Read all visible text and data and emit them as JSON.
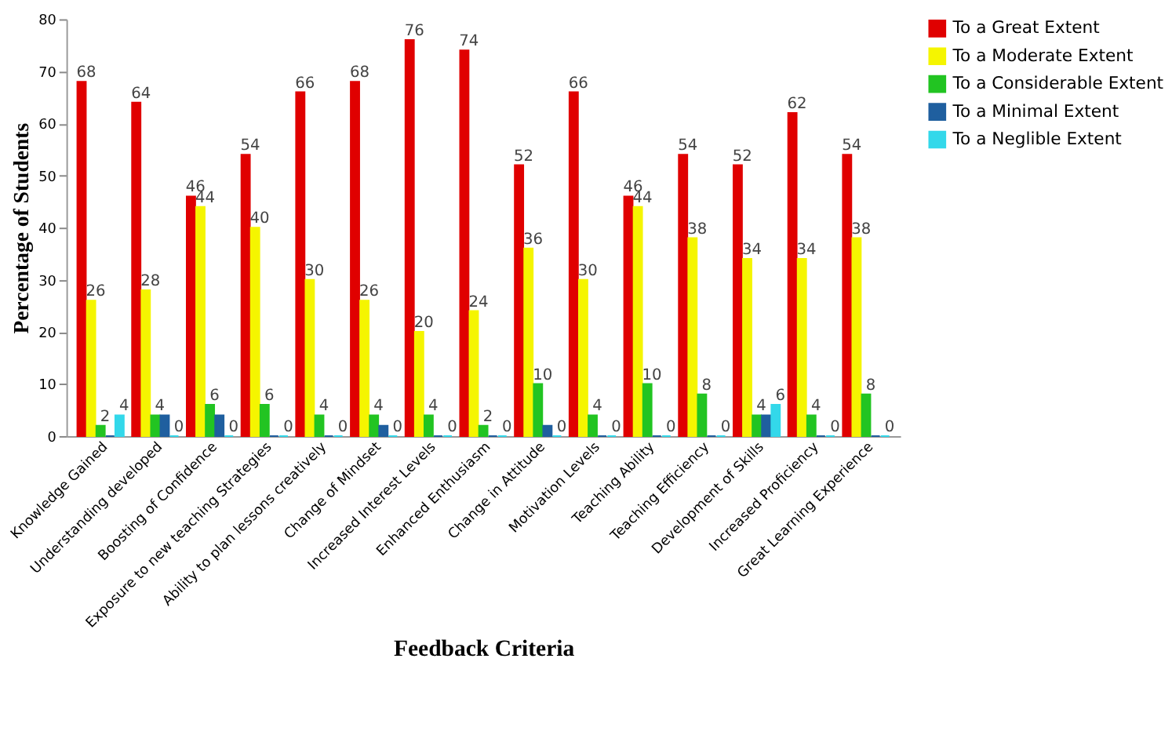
{
  "chart_data": {
    "type": "bar",
    "xlabel": "Feedback Criteria",
    "ylabel": "Percentage of Students",
    "categories": [
      "Knowledge Gained",
      "Understanding developed",
      "Boosting of Confidence",
      "Exposure to new teaching Strategies",
      "Ability to plan lessons creatively",
      "Change of Mindset",
      "Increased Interest Levels",
      "Enhanced Enthusiasm",
      "Change in Attitude",
      "Motivation Levels",
      "Teaching Ability",
      "Teaching Efficiency",
      "Development of Skills",
      "Increased Proficiency",
      "Great Learning Experience"
    ],
    "series": [
      {
        "name": "To a Great Extent",
        "color": "#e00000",
        "values": [
          68,
          64,
          46,
          54,
          66,
          68,
          76,
          74,
          52,
          66,
          46,
          54,
          52,
          62,
          54
        ],
        "value_labels": [
          "68",
          "64",
          "46",
          "54",
          "66",
          "68",
          "76",
          "74",
          "52",
          "66",
          "46",
          "54",
          "52",
          "62",
          "54"
        ]
      },
      {
        "name": "To a  Moderate Extent",
        "color": "#f5f500",
        "values": [
          26,
          28,
          44,
          40,
          30,
          26,
          20,
          24,
          36,
          30,
          44,
          38,
          34,
          34,
          38
        ],
        "value_labels": [
          "26",
          "28",
          "44",
          "40",
          "30",
          "26",
          "20",
          "24",
          "36",
          "30",
          "44",
          "38",
          "34",
          "34",
          "38"
        ]
      },
      {
        "name": "To a Considerable Extent",
        "color": "#22c422",
        "values": [
          2,
          4,
          6,
          6,
          4,
          4,
          4,
          2,
          10,
          4,
          10,
          8,
          4,
          4,
          8
        ],
        "value_labels": [
          "2",
          "4",
          "6",
          "6",
          "4",
          "4",
          "4",
          "2",
          "10",
          "4",
          "10",
          "8",
          "4",
          "4",
          "8"
        ]
      },
      {
        "name": "To a Minimal Extent",
        "color": "#1f5f9f",
        "values": [
          0,
          4,
          4,
          0,
          0,
          2,
          0,
          0,
          2,
          0,
          0,
          0,
          4,
          0,
          0
        ],
        "value_labels": [
          null,
          null,
          null,
          null,
          null,
          null,
          null,
          null,
          null,
          null,
          null,
          null,
          null,
          null,
          null
        ]
      },
      {
        "name": "To a Neglible Extent",
        "color": "#33d8ea",
        "values": [
          4,
          0,
          0,
          0,
          0,
          0,
          0,
          0,
          0,
          0,
          0,
          0,
          6,
          0,
          0
        ],
        "value_labels": [
          "4",
          "0",
          "0",
          "0",
          "0",
          "0",
          "0",
          "0",
          "0",
          "0",
          "0",
          "0",
          "6",
          "0",
          "0"
        ]
      }
    ],
    "ylim": [
      0,
      80
    ],
    "yticks": [
      0,
      10,
      20,
      30,
      40,
      50,
      60,
      70,
      80
    ],
    "grid": false,
    "legend": "right"
  }
}
